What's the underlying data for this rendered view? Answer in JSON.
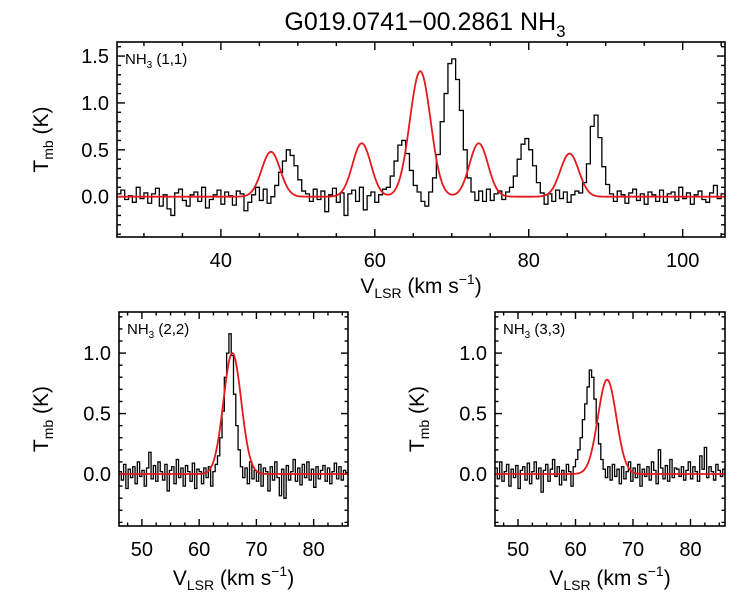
{
  "title": {
    "main": "G019.0741−00.2861 NH",
    "sub": "3"
  },
  "colors": {
    "data": "#000000",
    "fit": "#e41a1c"
  },
  "chart_data": [
    {
      "id": "panel-11",
      "type": "line",
      "label": {
        "main": "NH",
        "sub": "3",
        "rest": " (1,1)"
      },
      "xlabel": {
        "main": "V",
        "sub": "LSR",
        "rest": " (km s",
        "sup": "−1",
        "end": ")"
      },
      "ylabel": {
        "main": "T",
        "sub": "mb",
        "rest": " (K)"
      },
      "xlim": [
        26.5,
        105.5
      ],
      "ylim": [
        -0.43,
        1.65
      ],
      "xticks": [
        {
          "v": 40,
          "label": "40"
        },
        {
          "v": 60,
          "label": "60"
        },
        {
          "v": 80,
          "label": "80"
        },
        {
          "v": 100,
          "label": "100"
        }
      ],
      "yticks": [
        {
          "v": 0,
          "label": "0.0"
        },
        {
          "v": 0.5,
          "label": "0.5"
        },
        {
          "v": 1.0,
          "label": "1.0"
        },
        {
          "v": 1.5,
          "label": "1.5"
        }
      ],
      "series": [
        {
          "kind": "data-histogram",
          "x_start": 26.5,
          "x_step": 0.5,
          "values": [
            0.03,
            0.07,
            -0.03,
            0.01,
            -0.06,
            0.1,
            -0.02,
            0.04,
            -0.07,
            0.03,
            0.09,
            -0.1,
            0.02,
            -0.13,
            -0.2,
            0.04,
            0.08,
            -0.04,
            -0.1,
            0.02,
            0.05,
            -0.05,
            0.1,
            -0.12,
            -0.03,
            0.02,
            0.07,
            -0.08,
            0.05,
            0.01,
            -0.09,
            0.06,
            0.03,
            -0.15,
            -0.06,
            0.02,
            0.1,
            -0.04,
            0.08,
            -0.07,
            0.0,
            0.12,
            0.26,
            0.38,
            0.5,
            0.44,
            0.33,
            0.18,
            0.06,
            0.03,
            -0.05,
            0.08,
            -0.03,
            0.06,
            -0.16,
            0.02,
            0.09,
            -0.06,
            0.04,
            -0.2,
            0.03,
            0.07,
            -0.05,
            0.1,
            -0.14,
            0.01,
            0.05,
            -0.06,
            0.02,
            0.08,
            0.1,
            0.22,
            0.38,
            0.55,
            0.6,
            0.46,
            0.28,
            0.12,
            0.05,
            -0.05,
            -0.1,
            0.05,
            0.2,
            0.45,
            0.8,
            1.1,
            1.42,
            1.47,
            1.25,
            0.92,
            0.5,
            0.2,
            0.05,
            -0.04,
            0.06,
            -0.05,
            0.08,
            -0.04,
            0.03,
            0.06,
            -0.03,
            0.05,
            0.1,
            0.22,
            0.4,
            0.56,
            0.62,
            0.5,
            0.33,
            0.15,
            0.04,
            -0.08,
            0.03,
            -0.05,
            0.07,
            -0.02,
            0.05,
            -0.06,
            0.02,
            0.06,
            0.04,
            0.15,
            0.35,
            0.75,
            0.87,
            0.63,
            0.32,
            0.13,
            0.03,
            -0.05,
            0.06,
            0.02,
            -0.07,
            0.04,
            0.08,
            -0.04,
            0.03,
            -0.08,
            0.05,
            0.02,
            -0.05,
            0.07,
            -0.06,
            0.03,
            0.05,
            -0.04,
            0.1,
            -0.02,
            0.04,
            -0.08,
            0.02,
            0.06,
            -0.03,
            -0.06,
            0.04,
            0.12,
            -0.02,
            0.03
          ]
        },
        {
          "kind": "gaussian-fit",
          "components": [
            {
              "center": 46.5,
              "amp": 0.48,
              "sigma": 1.2
            },
            {
              "center": 58.3,
              "amp": 0.57,
              "sigma": 1.2
            },
            {
              "center": 65.9,
              "amp": 1.34,
              "sigma": 1.35
            },
            {
              "center": 73.5,
              "amp": 0.57,
              "sigma": 1.2
            },
            {
              "center": 85.3,
              "amp": 0.46,
              "sigma": 1.2
            }
          ]
        }
      ]
    },
    {
      "id": "panel-22",
      "type": "line",
      "label": {
        "main": "NH",
        "sub": "3",
        "rest": " (2,2)"
      },
      "xlabel": {
        "main": "V",
        "sub": "LSR",
        "rest": " (km s",
        "sup": "−1",
        "end": ")"
      },
      "ylabel": {
        "main": "T",
        "sub": "mb",
        "rest": " (K)"
      },
      "xlim": [
        46,
        86
      ],
      "ylim": [
        -0.43,
        1.34
      ],
      "xticks": [
        {
          "v": 50,
          "label": "50"
        },
        {
          "v": 60,
          "label": "60"
        },
        {
          "v": 70,
          "label": "70"
        },
        {
          "v": 80,
          "label": "80"
        }
      ],
      "yticks": [
        {
          "v": 0,
          "label": "0.0"
        },
        {
          "v": 0.5,
          "label": "0.5"
        },
        {
          "v": 1.0,
          "label": "1.0"
        }
      ],
      "series": [
        {
          "kind": "data-histogram",
          "x_start": 46.0,
          "x_step": 0.4,
          "values": [
            0.02,
            -0.05,
            0.08,
            -0.12,
            0.04,
            -0.03,
            0.06,
            -0.08,
            0.1,
            -0.02,
            0.03,
            -0.1,
            0.05,
            0.18,
            -0.04,
            0.07,
            -0.06,
            0.1,
            0.02,
            -0.05,
            0.08,
            -0.14,
            0.03,
            0.06,
            -0.08,
            0.12,
            -0.03,
            0.05,
            -0.1,
            0.07,
            0.02,
            -0.06,
            0.09,
            -0.12,
            0.04,
            0.02,
            -0.08,
            0.05,
            -0.03,
            0.06,
            -0.1,
            0.02,
            0.08,
            0.15,
            0.3,
            0.52,
            0.8,
            1.0,
            1.16,
            0.98,
            0.66,
            0.4,
            0.2,
            0.06,
            -0.03,
            0.05,
            -0.08,
            0.1,
            -0.04,
            0.03,
            -0.06,
            0.08,
            -0.1,
            0.05,
            0.02,
            -0.14,
            0.06,
            -0.05,
            0.1,
            -0.03,
            -0.18,
            0.04,
            -0.2,
            0.07,
            -0.05,
            0.02,
            0.12,
            -0.06,
            0.05,
            -0.09,
            0.08,
            -0.03,
            0.1,
            -0.05,
            0.04,
            -0.11,
            0.06,
            -0.04,
            0.03,
            0.07,
            -0.06,
            0.05,
            -0.08,
            0.02,
            0.09,
            -0.04,
            0.06,
            -0.05,
            0.03,
            0.01
          ]
        },
        {
          "kind": "gaussian-fit",
          "components": [
            {
              "center": 65.8,
              "amp": 1.0,
              "sigma": 1.55
            }
          ]
        }
      ]
    },
    {
      "id": "panel-33",
      "type": "line",
      "label": {
        "main": "NH",
        "sub": "3",
        "rest": " (3,3)"
      },
      "xlabel": {
        "main": "V",
        "sub": "LSR",
        "rest": " (km s",
        "sup": "−1",
        "end": ")"
      },
      "ylabel": {
        "main": "T",
        "sub": "mb",
        "rest": " (K)"
      },
      "xlim": [
        46,
        86
      ],
      "ylim": [
        -0.43,
        1.34
      ],
      "xticks": [
        {
          "v": 50,
          "label": "50"
        },
        {
          "v": 60,
          "label": "60"
        },
        {
          "v": 70,
          "label": "70"
        },
        {
          "v": 80,
          "label": "80"
        }
      ],
      "yticks": [
        {
          "v": 0,
          "label": "0.0"
        },
        {
          "v": 0.5,
          "label": "0.5"
        },
        {
          "v": 1.0,
          "label": "1.0"
        }
      ],
      "series": [
        {
          "kind": "data-histogram",
          "x_start": 46.0,
          "x_step": 0.4,
          "values": [
            0.05,
            -0.04,
            0.1,
            -0.06,
            0.02,
            0.08,
            -0.1,
            0.04,
            -0.03,
            0.07,
            -0.12,
            0.03,
            0.06,
            -0.05,
            0.09,
            -0.08,
            0.02,
            0.1,
            -0.04,
            0.05,
            -0.15,
            0.03,
            0.08,
            -0.06,
            0.04,
            0.12,
            -0.02,
            0.06,
            -0.09,
            0.03,
            -0.05,
            0.08,
            0.02,
            -0.1,
            0.06,
            0.12,
            0.2,
            0.3,
            0.45,
            0.58,
            0.72,
            0.86,
            0.8,
            0.62,
            0.42,
            0.25,
            0.12,
            0.04,
            -0.03,
            0.06,
            -0.05,
            0.08,
            -0.02,
            0.04,
            -0.08,
            0.06,
            -0.04,
            0.02,
            0.1,
            -0.06,
            0.05,
            -0.03,
            0.08,
            -0.1,
            0.04,
            -0.02,
            0.06,
            -0.05,
            0.1,
            0.03,
            -0.08,
            0.2,
            0.05,
            -0.04,
            0.07,
            -0.06,
            0.12,
            -0.03,
            0.05,
            0.04,
            -0.02,
            0.06,
            -0.05,
            0.03,
            0.1,
            -0.04,
            0.06,
            0.02,
            -0.06,
            0.15,
            0.04,
            0.22,
            -0.03,
            0.06,
            0.02,
            -0.05,
            0.08,
            0.03,
            -0.02,
            0.04
          ]
        },
        {
          "kind": "gaussian-fit",
          "components": [
            {
              "center": 65.5,
              "amp": 0.78,
              "sigma": 1.6
            }
          ]
        }
      ]
    }
  ]
}
